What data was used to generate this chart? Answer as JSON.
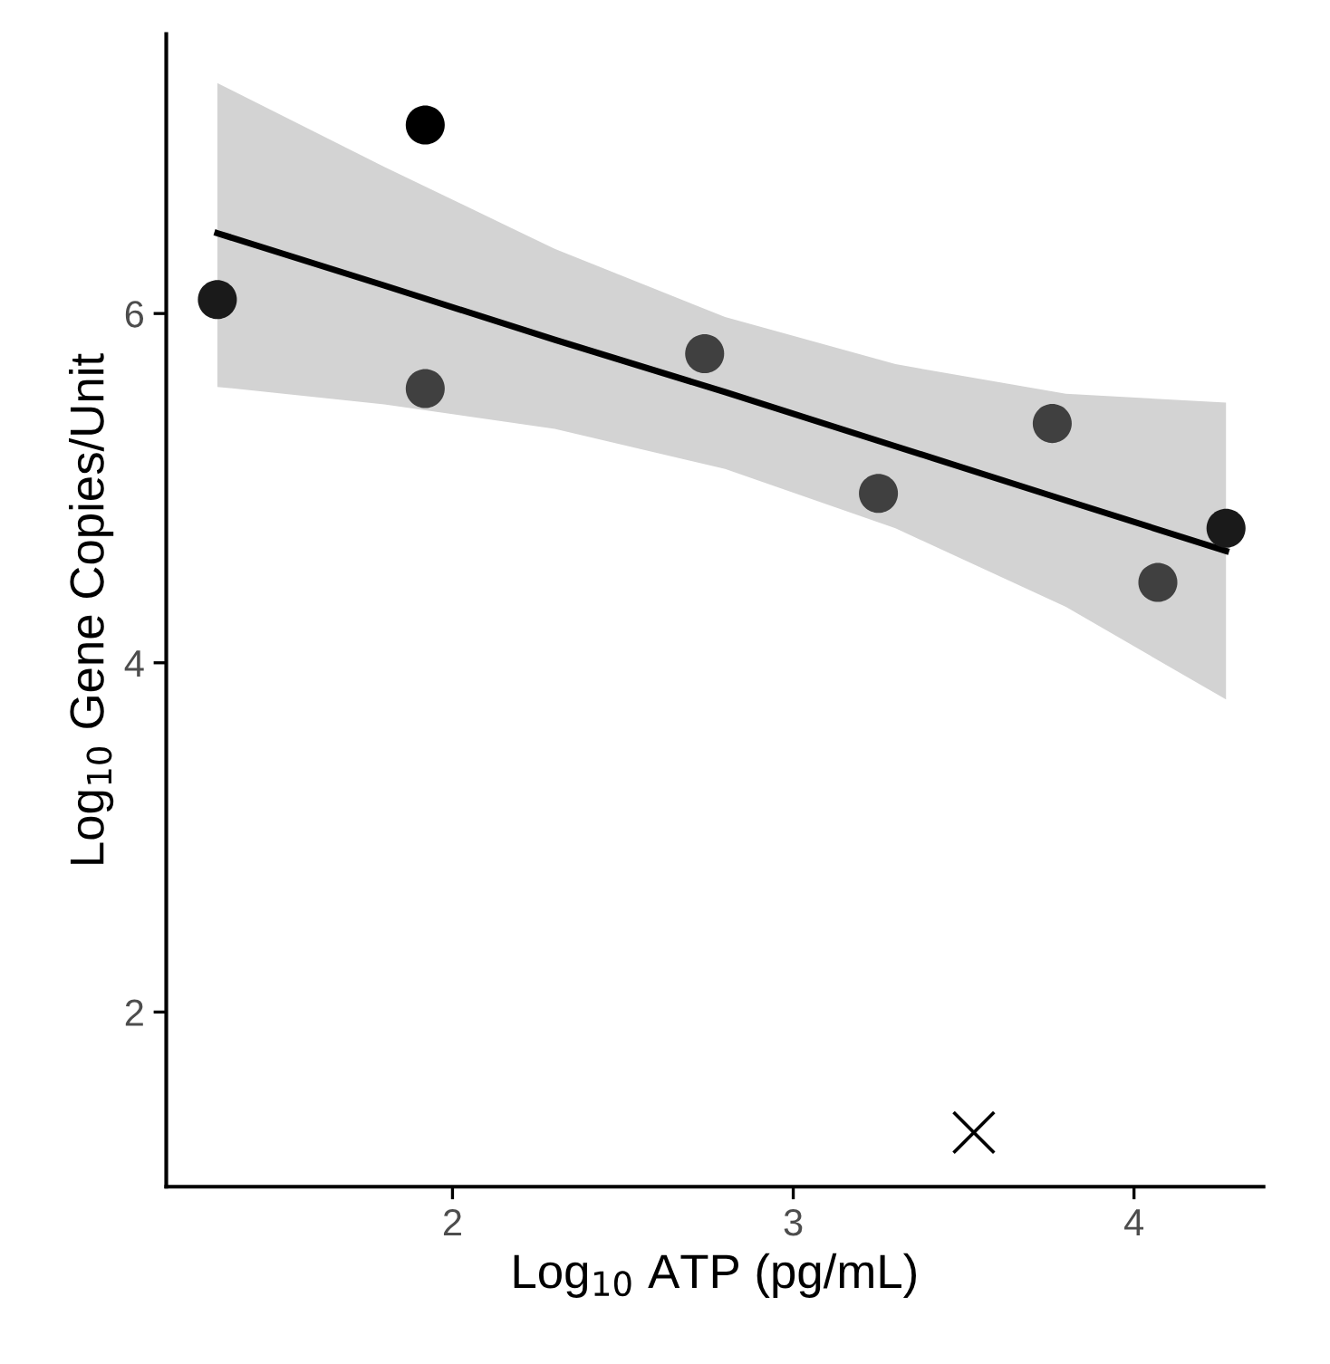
{
  "chart_data": {
    "type": "scatter",
    "xlabel": "Log$_{10}$ ATP (pg/mL)",
    "ylabel": "Log$_{10}$ Gene Copies/Unit",
    "xlim": [
      1.16,
      4.38
    ],
    "ylim": [
      1.0,
      7.6
    ],
    "xticks": [
      2,
      3,
      4
    ],
    "yticks": [
      2,
      4,
      6
    ],
    "grid": false,
    "legend": false,
    "series": [
      {
        "type": "line",
        "color": "#000000",
        "marker": "none",
        "line_style": "solid",
        "x": [
          1.31,
          1.8,
          2.3,
          2.8,
          3.3,
          3.8,
          4.27
        ],
        "values": [
          6.46,
          6.16,
          5.85,
          5.55,
          5.24,
          4.93,
          4.64
        ],
        "lower": [
          5.58,
          5.48,
          5.34,
          5.11,
          4.77,
          4.32,
          3.79
        ],
        "upper": [
          7.32,
          6.84,
          6.37,
          5.98,
          5.71,
          5.54,
          5.49
        ]
      },
      {
        "marker": "circle",
        "x": [
          1.31,
          1.92,
          1.92,
          2.74,
          3.25,
          3.76,
          4.07,
          4.27
        ],
        "values": [
          6.08,
          7.08,
          5.57,
          5.77,
          4.97,
          5.37,
          4.46,
          4.77
        ],
        "colors": [
          "#1a1a1a",
          "#000000",
          "#404040",
          "#404040",
          "#404040",
          "#404040",
          "#404040",
          "#1a1a1a"
        ]
      },
      {
        "marker": "cross",
        "color": "#000000",
        "x": [
          3.53
        ],
        "values": [
          1.31
        ]
      }
    ]
  }
}
